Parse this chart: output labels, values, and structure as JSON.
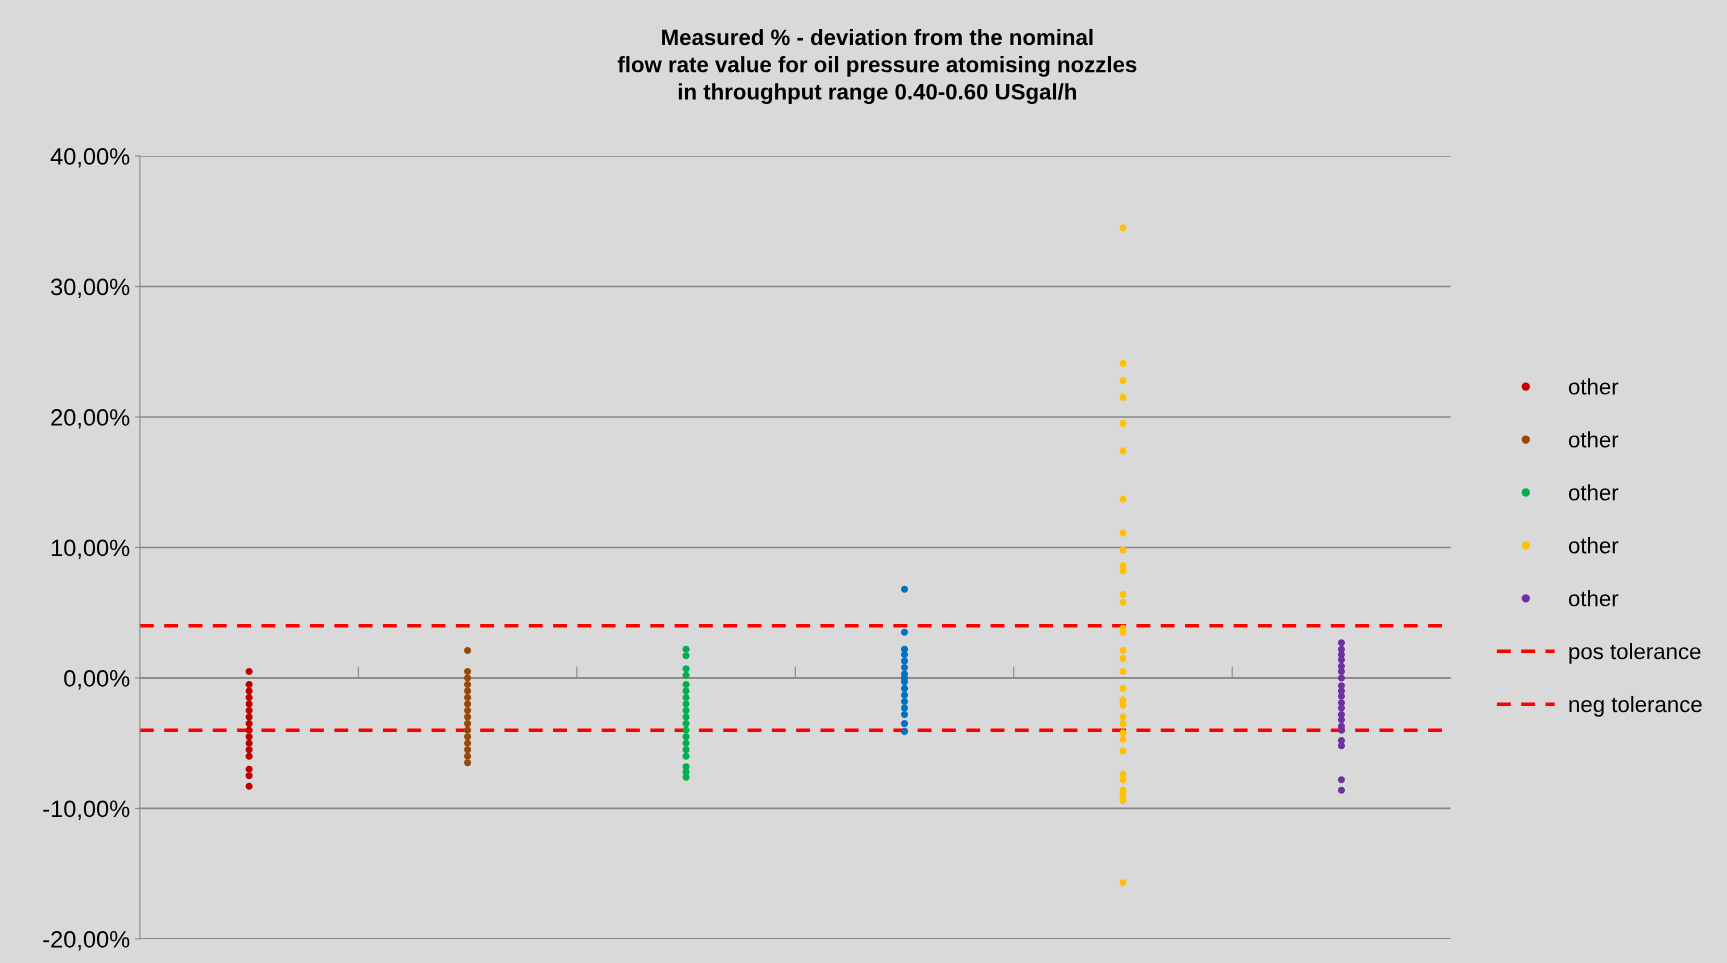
{
  "chart_data": {
    "type": "scatter",
    "title": "Measured % - deviation from the nominal\nflow rate value for oil pressure atomising nozzles\nin throughput range 0.40-0.60 USgal/h",
    "categories": [
      null,
      null,
      null,
      null,
      null,
      null
    ],
    "series": [
      {
        "name": "other",
        "color": "#c00000",
        "values": [
          0.5,
          null,
          null,
          null,
          null,
          null
        ]
      },
      {
        "color": "#c00000",
        "values": [
          -0.5,
          null,
          null,
          null,
          null,
          null
        ]
      },
      {
        "color": "#c00000",
        "values": [
          -1,
          null,
          null,
          null,
          null,
          null
        ]
      },
      {
        "color": "#c00000",
        "values": [
          -1.5,
          null,
          null,
          null,
          null,
          null
        ]
      },
      {
        "color": "#c00000",
        "values": [
          -2,
          null,
          null,
          null,
          null,
          null
        ]
      },
      {
        "color": "#c00000",
        "values": [
          -2.5,
          null,
          null,
          null,
          null,
          null
        ]
      },
      {
        "color": "#c00000",
        "values": [
          -3,
          null,
          null,
          null,
          null,
          null
        ]
      },
      {
        "color": "#c00000",
        "values": [
          -3.5,
          null,
          null,
          null,
          null,
          null
        ]
      },
      {
        "color": "#c00000",
        "values": [
          -4,
          null,
          null,
          null,
          null,
          null
        ]
      },
      {
        "color": "#c00000",
        "values": [
          -4.5,
          null,
          null,
          null,
          null,
          null
        ]
      },
      {
        "color": "#c00000",
        "values": [
          -5,
          null,
          null,
          null,
          null,
          null
        ]
      },
      {
        "color": "#c00000",
        "values": [
          -5.5,
          null,
          null,
          null,
          null,
          null
        ]
      },
      {
        "color": "#c00000",
        "values": [
          -6,
          null,
          null,
          null,
          null,
          null
        ]
      },
      {
        "color": "#c00000",
        "values": [
          -7,
          null,
          null,
          null,
          null,
          null
        ]
      },
      {
        "color": "#c00000",
        "values": [
          -7.5,
          null,
          null,
          null,
          null,
          null
        ]
      },
      {
        "color": "#c00000",
        "values": [
          -8.3,
          null,
          null,
          null,
          null,
          null
        ]
      },
      {
        "name": "other",
        "color": "#984807",
        "values": [
          null,
          2.1,
          null,
          null,
          null,
          null
        ]
      },
      {
        "color": "#984807",
        "values": [
          null,
          0.5,
          null,
          null,
          null,
          null
        ]
      },
      {
        "color": "#984807",
        "values": [
          null,
          0,
          null,
          null,
          null,
          null
        ]
      },
      {
        "color": "#984807",
        "values": [
          null,
          -0.5,
          null,
          null,
          null,
          null
        ]
      },
      {
        "color": "#984807",
        "values": [
          null,
          -1,
          null,
          null,
          null,
          null
        ]
      },
      {
        "color": "#984807",
        "values": [
          null,
          -1.5,
          null,
          null,
          null,
          null
        ]
      },
      {
        "color": "#984807",
        "values": [
          null,
          -2,
          null,
          null,
          null,
          null
        ]
      },
      {
        "color": "#984807",
        "values": [
          null,
          -2.5,
          null,
          null,
          null,
          null
        ]
      },
      {
        "color": "#984807",
        "values": [
          null,
          -3,
          null,
          null,
          null,
          null
        ]
      },
      {
        "color": "#984807",
        "values": [
          null,
          -3.5,
          null,
          null,
          null,
          null
        ]
      },
      {
        "color": "#984807",
        "values": [
          null,
          -4,
          null,
          null,
          null,
          null
        ]
      },
      {
        "color": "#984807",
        "values": [
          null,
          -4.5,
          null,
          null,
          null,
          null
        ]
      },
      {
        "color": "#984807",
        "values": [
          null,
          -5,
          null,
          null,
          null,
          null
        ]
      },
      {
        "color": "#984807",
        "values": [
          null,
          -5.5,
          null,
          null,
          null,
          null
        ]
      },
      {
        "color": "#984807",
        "values": [
          null,
          -6,
          null,
          null,
          null,
          null
        ]
      },
      {
        "color": "#984807",
        "values": [
          null,
          -6.5,
          null,
          null,
          null,
          null
        ]
      },
      {
        "name": "other",
        "color": "#00b050",
        "values": [
          null,
          null,
          2.2,
          null,
          null,
          null
        ]
      },
      {
        "color": "#00b050",
        "values": [
          null,
          null,
          1.7,
          null,
          null,
          null
        ]
      },
      {
        "color": "#00b050",
        "values": [
          null,
          null,
          0.7,
          null,
          null,
          null
        ]
      },
      {
        "color": "#00b050",
        "values": [
          null,
          null,
          0.2,
          null,
          null,
          null
        ]
      },
      {
        "color": "#00b050",
        "values": [
          null,
          null,
          -0.5,
          null,
          null,
          null
        ]
      },
      {
        "color": "#00b050",
        "values": [
          null,
          null,
          -1,
          null,
          null,
          null
        ]
      },
      {
        "color": "#00b050",
        "values": [
          null,
          null,
          -1.5,
          null,
          null,
          null
        ]
      },
      {
        "color": "#00b050",
        "values": [
          null,
          null,
          -2,
          null,
          null,
          null
        ]
      },
      {
        "color": "#00b050",
        "values": [
          null,
          null,
          -2.5,
          null,
          null,
          null
        ]
      },
      {
        "color": "#00b050",
        "values": [
          null,
          null,
          -3,
          null,
          null,
          null
        ]
      },
      {
        "color": "#00b050",
        "values": [
          null,
          null,
          -3.5,
          null,
          null,
          null
        ]
      },
      {
        "color": "#00b050",
        "values": [
          null,
          null,
          -4,
          null,
          null,
          null
        ]
      },
      {
        "color": "#00b050",
        "values": [
          null,
          null,
          -4.5,
          null,
          null,
          null
        ]
      },
      {
        "color": "#00b050",
        "values": [
          null,
          null,
          -5,
          null,
          null,
          null
        ]
      },
      {
        "color": "#00b050",
        "values": [
          null,
          null,
          -5.5,
          null,
          null,
          null
        ]
      },
      {
        "color": "#00b050",
        "values": [
          null,
          null,
          -6,
          null,
          null,
          null
        ]
      },
      {
        "color": "#00b050",
        "values": [
          null,
          null,
          -6.8,
          null,
          null,
          null
        ]
      },
      {
        "color": "#00b050",
        "values": [
          null,
          null,
          -7.2,
          null,
          null,
          null
        ]
      },
      {
        "color": "#00b050",
        "values": [
          null,
          null,
          -7.6,
          null,
          null,
          null
        ]
      },
      {
        "color": "#0070c0",
        "values": [
          null,
          null,
          null,
          6.8,
          null,
          null
        ]
      },
      {
        "color": "#0070c0",
        "values": [
          null,
          null,
          null,
          3.5,
          null,
          null
        ]
      },
      {
        "color": "#0070c0",
        "values": [
          null,
          null,
          null,
          2.2,
          null,
          null
        ]
      },
      {
        "color": "#0070c0",
        "values": [
          null,
          null,
          null,
          1.8,
          null,
          null
        ]
      },
      {
        "color": "#0070c0",
        "values": [
          null,
          null,
          null,
          1.3,
          null,
          null
        ]
      },
      {
        "color": "#0070c0",
        "values": [
          null,
          null,
          null,
          0.8,
          null,
          null
        ]
      },
      {
        "color": "#0070c0",
        "values": [
          null,
          null,
          null,
          0.3,
          null,
          null
        ]
      },
      {
        "color": "#0070c0",
        "values": [
          null,
          null,
          null,
          0,
          null,
          null
        ]
      },
      {
        "color": "#0070c0",
        "values": [
          null,
          null,
          null,
          -0.3,
          null,
          null
        ]
      },
      {
        "color": "#0070c0",
        "values": [
          null,
          null,
          null,
          -0.8,
          null,
          null
        ]
      },
      {
        "color": "#0070c0",
        "values": [
          null,
          null,
          null,
          -1.3,
          null,
          null
        ]
      },
      {
        "color": "#0070c0",
        "values": [
          null,
          null,
          null,
          -1.8,
          null,
          null
        ]
      },
      {
        "color": "#0070c0",
        "values": [
          null,
          null,
          null,
          -2.3,
          null,
          null
        ]
      },
      {
        "color": "#0070c0",
        "values": [
          null,
          null,
          null,
          -2.8,
          null,
          null
        ]
      },
      {
        "color": "#0070c0",
        "values": [
          null,
          null,
          null,
          -3.5,
          null,
          null
        ]
      },
      {
        "color": "#0070c0",
        "values": [
          null,
          null,
          null,
          -4.1,
          null,
          null
        ]
      },
      {
        "name": "other",
        "color": "#ffc000",
        "values": [
          null,
          null,
          null,
          null,
          34.5,
          null
        ]
      },
      {
        "color": "#ffc000",
        "values": [
          null,
          null,
          null,
          null,
          24.1,
          null
        ]
      },
      {
        "color": "#ffc000",
        "values": [
          null,
          null,
          null,
          null,
          22.8,
          null
        ]
      },
      {
        "color": "#ffc000",
        "values": [
          null,
          null,
          null,
          null,
          21.5,
          null
        ]
      },
      {
        "color": "#ffc000",
        "values": [
          null,
          null,
          null,
          null,
          19.5,
          null
        ]
      },
      {
        "color": "#ffc000",
        "values": [
          null,
          null,
          null,
          null,
          17.4,
          null
        ]
      },
      {
        "color": "#ffc000",
        "values": [
          null,
          null,
          null,
          null,
          13.7,
          null
        ]
      },
      {
        "color": "#ffc000",
        "values": [
          null,
          null,
          null,
          null,
          11.1,
          null
        ]
      },
      {
        "color": "#ffc000",
        "values": [
          null,
          null,
          null,
          null,
          9.8,
          null
        ]
      },
      {
        "color": "#ffc000",
        "values": [
          null,
          null,
          null,
          null,
          8.6,
          null
        ]
      },
      {
        "color": "#ffc000",
        "values": [
          null,
          null,
          null,
          null,
          8.2,
          null
        ]
      },
      {
        "color": "#ffc000",
        "values": [
          null,
          null,
          null,
          null,
          6.4,
          null
        ]
      },
      {
        "color": "#ffc000",
        "values": [
          null,
          null,
          null,
          null,
          5.8,
          null
        ]
      },
      {
        "color": "#ffc000",
        "values": [
          null,
          null,
          null,
          null,
          3.8,
          null
        ]
      },
      {
        "color": "#ffc000",
        "values": [
          null,
          null,
          null,
          null,
          3.5,
          null
        ]
      },
      {
        "color": "#ffc000",
        "values": [
          null,
          null,
          null,
          null,
          2.1,
          null
        ]
      },
      {
        "color": "#ffc000",
        "values": [
          null,
          null,
          null,
          null,
          1.5,
          null
        ]
      },
      {
        "color": "#ffc000",
        "values": [
          null,
          null,
          null,
          null,
          0.5,
          null
        ]
      },
      {
        "color": "#ffc000",
        "values": [
          null,
          null,
          null,
          null,
          -0.8,
          null
        ]
      },
      {
        "color": "#ffc000",
        "values": [
          null,
          null,
          null,
          null,
          -1.7,
          null
        ]
      },
      {
        "color": "#ffc000",
        "values": [
          null,
          null,
          null,
          null,
          -2.1,
          null
        ]
      },
      {
        "color": "#ffc000",
        "values": [
          null,
          null,
          null,
          null,
          -3.0,
          null
        ]
      },
      {
        "color": "#ffc000",
        "values": [
          null,
          null,
          null,
          null,
          -3.5,
          null
        ]
      },
      {
        "color": "#ffc000",
        "values": [
          null,
          null,
          null,
          null,
          -4.2,
          null
        ]
      },
      {
        "color": "#ffc000",
        "values": [
          null,
          null,
          null,
          null,
          -4.7,
          null
        ]
      },
      {
        "color": "#ffc000",
        "values": [
          null,
          null,
          null,
          null,
          -5.6,
          null
        ]
      },
      {
        "color": "#ffc000",
        "values": [
          null,
          null,
          null,
          null,
          -7.4,
          null
        ]
      },
      {
        "color": "#ffc000",
        "values": [
          null,
          null,
          null,
          null,
          -7.8,
          null
        ]
      },
      {
        "color": "#ffc000",
        "values": [
          null,
          null,
          null,
          null,
          -8.6,
          null
        ]
      },
      {
        "color": "#ffc000",
        "values": [
          null,
          null,
          null,
          null,
          -9.0,
          null
        ]
      },
      {
        "color": "#ffc000",
        "values": [
          null,
          null,
          null,
          null,
          -9.4,
          null
        ]
      },
      {
        "color": "#ffc000",
        "values": [
          null,
          null,
          null,
          null,
          -15.7,
          null
        ]
      },
      {
        "name": "other",
        "color": "#7030a0",
        "values": [
          null,
          null,
          null,
          null,
          null,
          2.7
        ]
      },
      {
        "color": "#7030a0",
        "values": [
          null,
          null,
          null,
          null,
          null,
          2.2
        ]
      },
      {
        "color": "#7030a0",
        "values": [
          null,
          null,
          null,
          null,
          null,
          1.8
        ]
      },
      {
        "color": "#7030a0",
        "values": [
          null,
          null,
          null,
          null,
          null,
          1.4
        ]
      },
      {
        "color": "#7030a0",
        "values": [
          null,
          null,
          null,
          null,
          null,
          0.9
        ]
      },
      {
        "color": "#7030a0",
        "values": [
          null,
          null,
          null,
          null,
          null,
          0.5
        ]
      },
      {
        "color": "#7030a0",
        "values": [
          null,
          null,
          null,
          null,
          null,
          0
        ]
      },
      {
        "color": "#7030a0",
        "values": [
          null,
          null,
          null,
          null,
          null,
          -0.6
        ]
      },
      {
        "color": "#7030a0",
        "values": [
          null,
          null,
          null,
          null,
          null,
          -1
        ]
      },
      {
        "color": "#7030a0",
        "values": [
          null,
          null,
          null,
          null,
          null,
          -1.4
        ]
      },
      {
        "color": "#7030a0",
        "values": [
          null,
          null,
          null,
          null,
          null,
          -1.9
        ]
      },
      {
        "color": "#7030a0",
        "values": [
          null,
          null,
          null,
          null,
          null,
          -2.3
        ]
      },
      {
        "color": "#7030a0",
        "values": [
          null,
          null,
          null,
          null,
          null,
          -2.8
        ]
      },
      {
        "color": "#7030a0",
        "values": [
          null,
          null,
          null,
          null,
          null,
          -3.2
        ]
      },
      {
        "color": "#7030a0",
        "values": [
          null,
          null,
          null,
          null,
          null,
          -3.7
        ]
      },
      {
        "color": "#7030a0",
        "values": [
          null,
          null,
          null,
          null,
          null,
          -4.0
        ]
      },
      {
        "color": "#7030a0",
        "values": [
          null,
          null,
          null,
          null,
          null,
          -4.8
        ]
      },
      {
        "color": "#7030a0",
        "values": [
          null,
          null,
          null,
          null,
          null,
          -5.2
        ]
      },
      {
        "color": "#7030a0",
        "values": [
          null,
          null,
          null,
          null,
          null,
          -7.8
        ]
      },
      {
        "color": "#7030a0",
        "values": [
          null,
          null,
          null,
          null,
          null,
          -8.6
        ]
      }
    ],
    "ref_lines": [
      {
        "axis": "y",
        "value": 4,
        "label": "pos tolerance",
        "color": "#ff0000",
        "line_style": "dashed"
      },
      {
        "axis": "y",
        "value": -4,
        "label": "neg tolerance",
        "color": "#ff0000",
        "line_style": "dashed"
      }
    ],
    "ylim": [
      -20,
      40
    ],
    "yticks": [
      {
        "value": -20,
        "label": "-20,00%"
      },
      {
        "value": -10,
        "label": "-10,00%"
      },
      {
        "value": 0,
        "label": "0,00%"
      },
      {
        "value": 10,
        "label": "10,00%"
      },
      {
        "value": 20,
        "label": "20,00%"
      },
      {
        "value": 30,
        "label": "30,00%"
      },
      {
        "value": 40,
        "label": "40,00%"
      }
    ],
    "tick_labels": "y",
    "grid": "y",
    "legend": "right",
    "marker": "circle"
  }
}
